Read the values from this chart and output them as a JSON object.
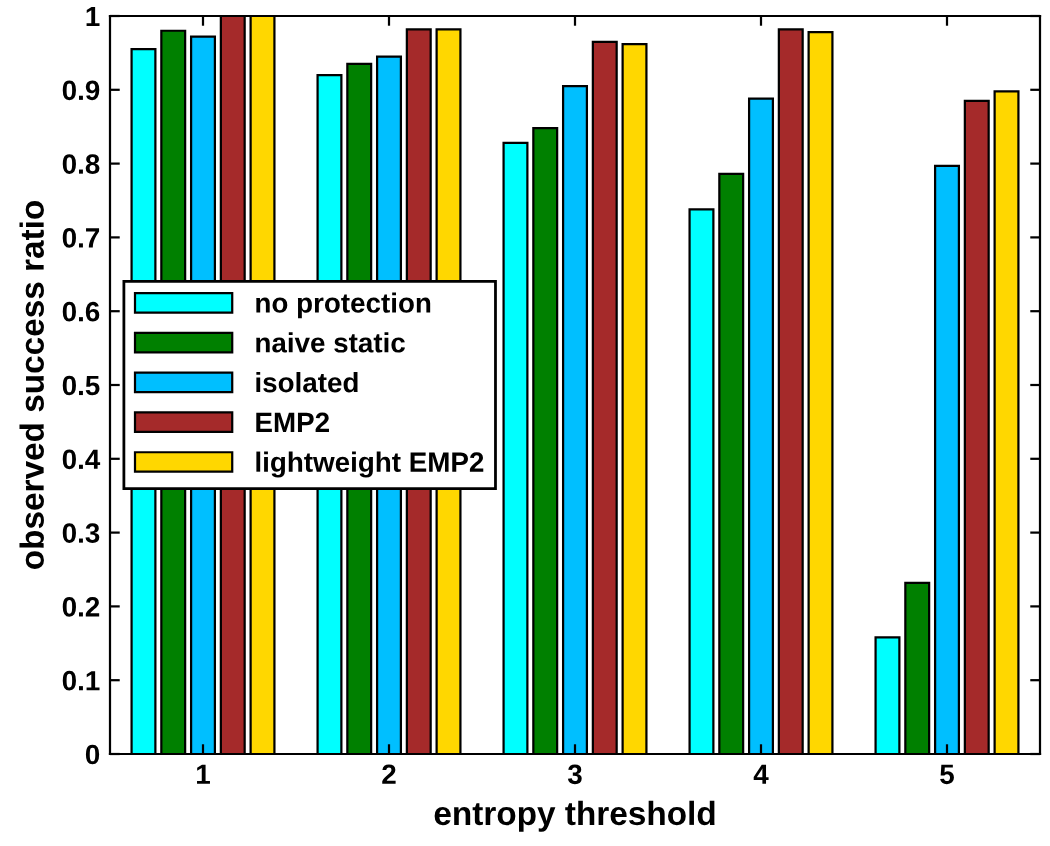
{
  "chart_data": {
    "type": "bar",
    "xlabel": "entropy threshold",
    "ylabel": "observed success ratio",
    "categories": [
      "1",
      "2",
      "3",
      "4",
      "5"
    ],
    "series": [
      {
        "name": "no protection",
        "color": "#00ffff",
        "values": [
          0.955,
          0.92,
          0.828,
          0.738,
          0.158
        ]
      },
      {
        "name": "naive static",
        "color": "#008000",
        "values": [
          0.98,
          0.935,
          0.848,
          0.786,
          0.232
        ]
      },
      {
        "name": "isolated",
        "color": "#00bfff",
        "values": [
          0.972,
          0.945,
          0.905,
          0.888,
          0.797
        ]
      },
      {
        "name": "EMP2",
        "color": "#a52a2a",
        "values": [
          1.0,
          0.982,
          0.965,
          0.982,
          0.885
        ]
      },
      {
        "name": "lightweight EMP2",
        "color": "#ffd700",
        "values": [
          1.0,
          0.982,
          0.962,
          0.978,
          0.898
        ]
      }
    ],
    "ylim": [
      0,
      1
    ],
    "yticks": [
      0,
      0.1,
      0.2,
      0.3,
      0.4,
      0.5,
      0.6,
      0.7,
      0.8,
      0.9,
      1
    ],
    "grid": false,
    "legend": "left"
  }
}
